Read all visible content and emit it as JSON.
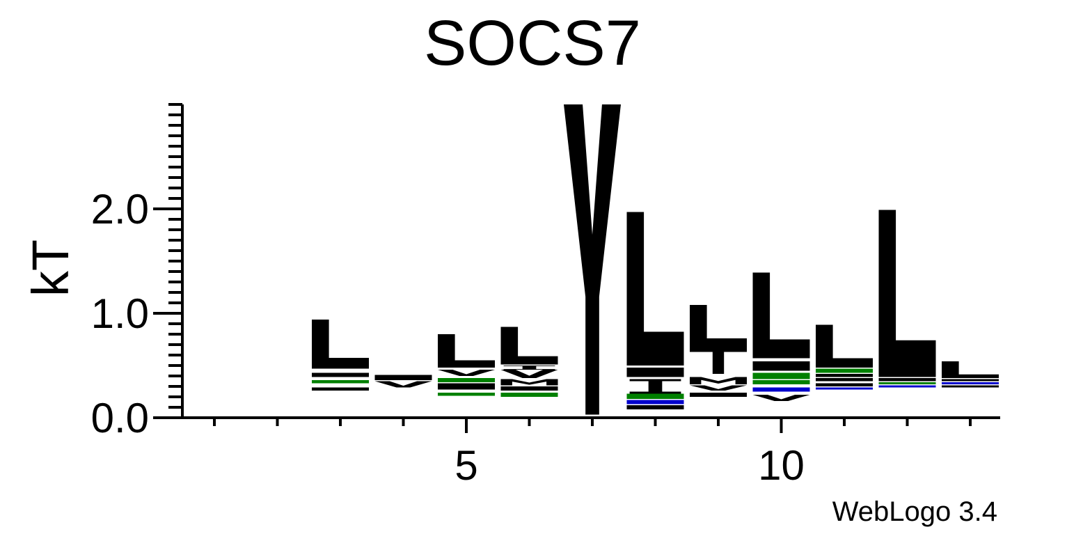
{
  "chart_data": {
    "type": "sequence-logo",
    "title": "SOCS7",
    "ylabel": "kT",
    "xlabel": "",
    "credit": "WebLogo 3.4",
    "x_range": [
      1,
      13
    ],
    "ylim": [
      0,
      3.0
    ],
    "y_ticks": [
      {
        "value": 0.0,
        "label": "0.0"
      },
      {
        "value": 1.0,
        "label": "1.0"
      },
      {
        "value": 2.0,
        "label": "2.0"
      }
    ],
    "x_ticks": [
      {
        "value": 5,
        "label": "5"
      },
      {
        "value": 10,
        "label": "10"
      }
    ],
    "colors": {
      "hydrophobic": "#000000",
      "polar": "#008000",
      "basic": "#0000cc",
      "axis": "#000000"
    },
    "positions": [
      {
        "position": 3,
        "stack": [
          {
            "letter": "",
            "color": "#000000",
            "y0": 0.26,
            "height": 0.03
          },
          {
            "letter": "",
            "color": "#008000",
            "y0": 0.33,
            "height": 0.03
          },
          {
            "letter": "",
            "color": "#000000",
            "y0": 0.39,
            "height": 0.04
          },
          {
            "letter": "L",
            "color": "#000000",
            "y0": 0.47,
            "height": 0.47
          }
        ]
      },
      {
        "position": 4,
        "stack": [
          {
            "letter": "V",
            "color": "#000000",
            "y0": 0.29,
            "height": 0.06
          },
          {
            "letter": "",
            "color": "#000000",
            "y0": 0.36,
            "height": 0.05
          }
        ]
      },
      {
        "position": 5,
        "stack": [
          {
            "letter": "",
            "color": "#008000",
            "y0": 0.21,
            "height": 0.03
          },
          {
            "letter": "",
            "color": "#000000",
            "y0": 0.27,
            "height": 0.06
          },
          {
            "letter": "",
            "color": "#008000",
            "y0": 0.34,
            "height": 0.04
          },
          {
            "letter": "V",
            "color": "#000000",
            "y0": 0.4,
            "height": 0.06
          },
          {
            "letter": "L",
            "color": "#000000",
            "y0": 0.48,
            "height": 0.32
          }
        ]
      },
      {
        "position": 6,
        "stack": [
          {
            "letter": "",
            "color": "#008000",
            "y0": 0.2,
            "height": 0.04
          },
          {
            "letter": "",
            "color": "#000000",
            "y0": 0.26,
            "height": 0.04
          },
          {
            "letter": "M",
            "color": "#000000",
            "y0": 0.31,
            "height": 0.06
          },
          {
            "letter": "V",
            "color": "#000000",
            "y0": 0.38,
            "height": 0.08
          },
          {
            "letter": "I",
            "color": "#000000",
            "y0": 0.46,
            "height": 0.04
          },
          {
            "letter": "L",
            "color": "#000000",
            "y0": 0.51,
            "height": 0.36
          }
        ]
      },
      {
        "position": 7,
        "stack": [
          {
            "letter": "Y",
            "color": "#000000",
            "y0": 0.03,
            "height": 2.97
          }
        ]
      },
      {
        "position": 8,
        "stack": [
          {
            "letter": "",
            "color": "#000000",
            "y0": 0.08,
            "height": 0.04
          },
          {
            "letter": "",
            "color": "#0000cc",
            "y0": 0.13,
            "height": 0.04
          },
          {
            "letter": "",
            "color": "#008000",
            "y0": 0.18,
            "height": 0.05
          },
          {
            "letter": "I",
            "color": "#000000",
            "y0": 0.23,
            "height": 0.14
          },
          {
            "letter": "",
            "color": "#000000",
            "y0": 0.39,
            "height": 0.09
          },
          {
            "letter": "L",
            "color": "#000000",
            "y0": 0.5,
            "height": 1.47
          }
        ]
      },
      {
        "position": 9,
        "stack": [
          {
            "letter": "",
            "color": "#000000",
            "y0": 0.2,
            "height": 0.04
          },
          {
            "letter": "V",
            "color": "#000000",
            "y0": 0.26,
            "height": 0.05
          },
          {
            "letter": "M",
            "color": "#000000",
            "y0": 0.32,
            "height": 0.07
          },
          {
            "letter": "T",
            "color": "#000000",
            "y0": 0.42,
            "height": 0.25
          },
          {
            "letter": "L",
            "color": "#000000",
            "y0": 0.67,
            "height": 0.41
          }
        ]
      },
      {
        "position": 10,
        "stack": [
          {
            "letter": "V",
            "color": "#000000",
            "y0": 0.16,
            "height": 0.06
          },
          {
            "letter": "",
            "color": "#0000cc",
            "y0": 0.25,
            "height": 0.04
          },
          {
            "letter": "",
            "color": "#008000",
            "y0": 0.32,
            "height": 0.04
          },
          {
            "letter": "",
            "color": "#008000",
            "y0": 0.37,
            "height": 0.06
          },
          {
            "letter": "",
            "color": "#000000",
            "y0": 0.45,
            "height": 0.09
          },
          {
            "letter": "L",
            "color": "#000000",
            "y0": 0.57,
            "height": 0.82
          }
        ]
      },
      {
        "position": 11,
        "stack": [
          {
            "letter": "",
            "color": "#0000cc",
            "y0": 0.27,
            "height": 0.02
          },
          {
            "letter": "",
            "color": "#000000",
            "y0": 0.3,
            "height": 0.03
          },
          {
            "letter": "",
            "color": "#000000",
            "y0": 0.35,
            "height": 0.03
          },
          {
            "letter": "",
            "color": "#000000",
            "y0": 0.39,
            "height": 0.03
          },
          {
            "letter": "",
            "color": "#008000",
            "y0": 0.43,
            "height": 0.04
          },
          {
            "letter": "L",
            "color": "#000000",
            "y0": 0.48,
            "height": 0.41
          }
        ]
      },
      {
        "position": 12,
        "stack": [
          {
            "letter": "",
            "color": "#0000cc",
            "y0": 0.29,
            "height": 0.02
          },
          {
            "letter": "",
            "color": "#008000",
            "y0": 0.32,
            "height": 0.02
          },
          {
            "letter": "",
            "color": "#000000",
            "y0": 0.35,
            "height": 0.03
          },
          {
            "letter": "L",
            "color": "#000000",
            "y0": 0.39,
            "height": 1.6
          }
        ]
      },
      {
        "position": 13,
        "stack": [
          {
            "letter": "",
            "color": "#000000",
            "y0": 0.29,
            "height": 0.02
          },
          {
            "letter": "",
            "color": "#0000cc",
            "y0": 0.32,
            "height": 0.02
          },
          {
            "letter": "",
            "color": "#000000",
            "y0": 0.35,
            "height": 0.02
          },
          {
            "letter": "L",
            "color": "#000000",
            "y0": 0.38,
            "height": 0.16
          }
        ]
      }
    ]
  }
}
